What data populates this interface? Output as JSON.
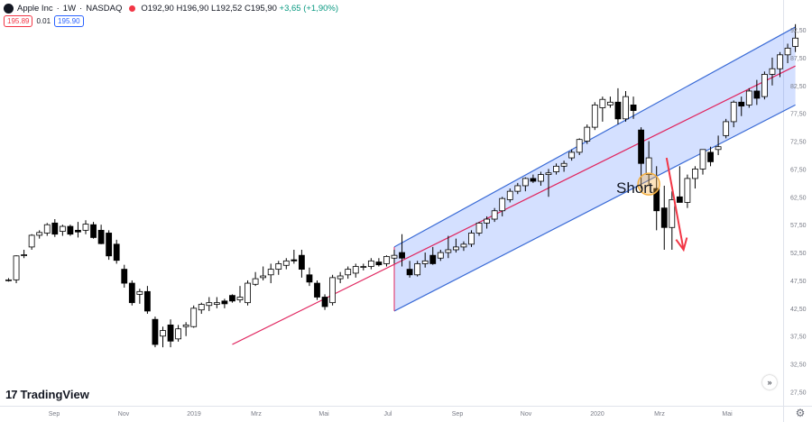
{
  "header": {
    "symbol": "Apple Inc",
    "interval": "1W",
    "exchange": "NASDAQ",
    "ohlc": {
      "open": "O192,90",
      "high": "H196,90",
      "low": "L192,52",
      "close": "C195,90",
      "change": "+3,65 (+1,90%)"
    },
    "sell_price": "195.89",
    "spread": "0.01",
    "buy_price": "195.90"
  },
  "brand": {
    "name": "TradingView",
    "mark": "17"
  },
  "goto_icon": "»",
  "settings_icon": "⚙",
  "annotation": {
    "label": "Short"
  },
  "colors": {
    "channel_fill": "#2962ff",
    "channel_line": "#3a6bd6",
    "mid_line": "#e0245e",
    "candle_up_fill": "#ffffff",
    "candle_down_fill": "#000000",
    "arrow": "#f23645",
    "marker": "#f5b041"
  },
  "chart_data": {
    "type": "candlestick",
    "y_axis": {
      "ticks": [
        "92,50",
        "87,50",
        "82,50",
        "77,50",
        "72,50",
        "67,50",
        "62,50",
        "57,50",
        "52,50",
        "47,50",
        "42,50",
        "37,50",
        "32,50",
        "27,50"
      ],
      "range": [
        25,
        95
      ]
    },
    "x_axis": {
      "ticks": [
        "Sep",
        "Nov",
        "2019",
        "Mrz",
        "Mai",
        "Jul",
        "Sep",
        "Nov",
        "2020",
        "Mrz",
        "Mai"
      ]
    },
    "candles": [
      [
        47.6,
        47.9,
        47.3,
        47.6
      ],
      [
        47.6,
        52.0,
        47.0,
        51.9
      ],
      [
        52.0,
        53.0,
        51.5,
        52.1
      ],
      [
        53.5,
        55.8,
        53.0,
        55.6
      ],
      [
        55.6,
        56.5,
        55.0,
        56.1
      ],
      [
        56.0,
        57.8,
        55.5,
        57.5
      ],
      [
        57.8,
        58.5,
        55.3,
        55.8
      ],
      [
        56.3,
        57.5,
        55.5,
        57.2
      ],
      [
        57.2,
        57.5,
        55.5,
        55.8
      ],
      [
        56.5,
        58.0,
        55.2,
        56.2
      ],
      [
        56.5,
        58.3,
        55.8,
        57.6
      ],
      [
        57.5,
        58.0,
        55.0,
        55.2
      ],
      [
        56.5,
        57.5,
        54.0,
        54.1
      ],
      [
        56.0,
        56.5,
        51.2,
        51.9
      ],
      [
        54.0,
        54.8,
        50.5,
        51.1
      ],
      [
        49.5,
        50.3,
        46.2,
        47.0
      ],
      [
        47.0,
        47.5,
        43.0,
        43.5
      ],
      [
        45.0,
        46.0,
        43.3,
        45.5
      ],
      [
        45.5,
        46.5,
        41.5,
        42.0
      ],
      [
        40.5,
        41.0,
        35.5,
        36.0
      ],
      [
        37.5,
        39.2,
        35.5,
        38.5
      ],
      [
        39.5,
        40.5,
        35.5,
        36.6
      ],
      [
        37.0,
        39.5,
        36.5,
        38.8
      ],
      [
        39.2,
        40.0,
        37.5,
        39.5
      ],
      [
        39.2,
        43.0,
        39.0,
        42.5
      ],
      [
        42.2,
        43.5,
        41.5,
        43.2
      ],
      [
        43.0,
        44.5,
        42.0,
        43.5
      ],
      [
        43.2,
        44.5,
        42.5,
        43.5
      ],
      [
        43.8,
        44.2,
        42.5,
        43.3
      ],
      [
        44.8,
        45.0,
        43.5,
        43.8
      ],
      [
        44.0,
        46.5,
        43.5,
        44.5
      ],
      [
        43.5,
        47.5,
        43.0,
        47.0
      ],
      [
        46.8,
        49.0,
        46.5,
        47.8
      ],
      [
        48.0,
        50.0,
        47.5,
        48.3
      ],
      [
        48.5,
        50.5,
        47.0,
        49.5
      ],
      [
        49.5,
        51.0,
        48.5,
        50.5
      ],
      [
        50.2,
        51.5,
        49.5,
        51.0
      ],
      [
        51.2,
        53.0,
        50.5,
        51.0
      ],
      [
        52.0,
        53.0,
        48.0,
        49.5
      ],
      [
        48.5,
        49.8,
        46.5,
        47.2
      ],
      [
        47.0,
        47.5,
        44.0,
        44.5
      ],
      [
        44.5,
        45.0,
        42.2,
        42.8
      ],
      [
        43.5,
        48.5,
        43.0,
        48.0
      ],
      [
        47.8,
        49.0,
        47.0,
        48.3
      ],
      [
        48.5,
        50.0,
        47.8,
        49.5
      ],
      [
        48.8,
        50.5,
        48.0,
        50.0
      ],
      [
        50.0,
        50.5,
        49.3,
        50.0
      ],
      [
        50.0,
        51.5,
        49.5,
        51.0
      ],
      [
        50.8,
        51.5,
        50.0,
        50.3
      ],
      [
        50.5,
        52.0,
        50.0,
        51.8
      ],
      [
        51.5,
        53.0,
        50.5,
        52.0
      ],
      [
        52.5,
        55.8,
        50.0,
        51.5
      ],
      [
        49.5,
        51.0,
        48.0,
        48.5
      ],
      [
        48.5,
        51.0,
        48.2,
        50.5
      ],
      [
        50.5,
        52.5,
        49.8,
        51.0
      ],
      [
        52.0,
        53.5,
        50.3,
        50.5
      ],
      [
        51.5,
        53.0,
        51.0,
        52.5
      ],
      [
        52.5,
        55.5,
        51.5,
        53.0
      ],
      [
        53.0,
        55.0,
        52.5,
        53.5
      ],
      [
        53.5,
        54.5,
        52.8,
        54.0
      ],
      [
        54.0,
        56.5,
        53.5,
        56.0
      ],
      [
        56.0,
        58.0,
        55.5,
        57.8
      ],
      [
        57.8,
        59.0,
        56.8,
        58.5
      ],
      [
        58.5,
        60.5,
        58.0,
        60.0
      ],
      [
        60.0,
        62.5,
        59.0,
        62.2
      ],
      [
        62.0,
        64.0,
        61.5,
        63.5
      ],
      [
        63.5,
        65.0,
        63.0,
        64.5
      ],
      [
        64.5,
        66.0,
        63.5,
        65.8
      ],
      [
        65.8,
        66.5,
        65.0,
        65.3
      ],
      [
        65.3,
        67.0,
        64.5,
        66.5
      ],
      [
        66.5,
        67.5,
        62.5,
        66.8
      ],
      [
        67.0,
        68.5,
        66.5,
        68.0
      ],
      [
        68.0,
        69.0,
        67.0,
        68.5
      ],
      [
        69.5,
        71.0,
        69.0,
        70.5
      ],
      [
        70.5,
        73.0,
        70.0,
        72.8
      ],
      [
        72.5,
        75.5,
        72.0,
        75.0
      ],
      [
        75.0,
        79.5,
        74.5,
        79.0
      ],
      [
        78.5,
        80.5,
        76.0,
        80.0
      ],
      [
        79.0,
        80.5,
        78.5,
        79.5
      ],
      [
        79.5,
        82.0,
        75.5,
        76.5
      ],
      [
        76.5,
        81.5,
        76.0,
        80.5
      ],
      [
        79.0,
        80.5,
        76.5,
        78.0
      ],
      [
        74.5,
        75.0,
        64.0,
        68.5
      ],
      [
        66.5,
        72.5,
        64.5,
        69.5
      ],
      [
        64.0,
        68.0,
        56.5,
        60.0
      ],
      [
        60.5,
        64.5,
        53.0,
        57.0
      ],
      [
        57.0,
        63.5,
        53.0,
        62.0
      ],
      [
        62.5,
        68.0,
        61.5,
        61.5
      ],
      [
        61.5,
        66.5,
        60.5,
        65.8
      ],
      [
        65.8,
        68.0,
        64.0,
        67.5
      ],
      [
        67.5,
        71.0,
        66.5,
        71.0
      ],
      [
        70.5,
        71.5,
        68.0,
        68.8
      ],
      [
        71.0,
        73.5,
        70.0,
        71.5
      ],
      [
        73.5,
        76.5,
        73.0,
        76.0
      ],
      [
        76.0,
        79.8,
        75.0,
        79.5
      ],
      [
        79.5,
        80.5,
        77.0,
        78.8
      ],
      [
        79.0,
        82.0,
        78.5,
        81.5
      ],
      [
        81.5,
        83.5,
        79.0,
        80.2
      ],
      [
        80.5,
        85.0,
        80.0,
        84.5
      ],
      [
        84.5,
        87.5,
        82.5,
        85.5
      ],
      [
        85.5,
        88.5,
        84.0,
        88.0
      ],
      [
        88.0,
        90.0,
        86.5,
        89.2
      ],
      [
        89.5,
        93.5,
        88.5,
        91.0
      ]
    ],
    "channel": {
      "upper": [
        [
          50,
          53.5
        ],
        [
          102,
          93.0
        ]
      ],
      "lower": [
        [
          50,
          42.0
        ],
        [
          102,
          79.0
        ]
      ]
    },
    "mid_line": [
      [
        29,
        36.0
      ],
      [
        102,
        86.0
      ]
    ],
    "short_marker": {
      "index": 83,
      "price": 64.8
    },
    "short_arrow": {
      "from": [
        85.3,
        69.5
      ],
      "to": [
        87.5,
        53.0
      ]
    }
  }
}
